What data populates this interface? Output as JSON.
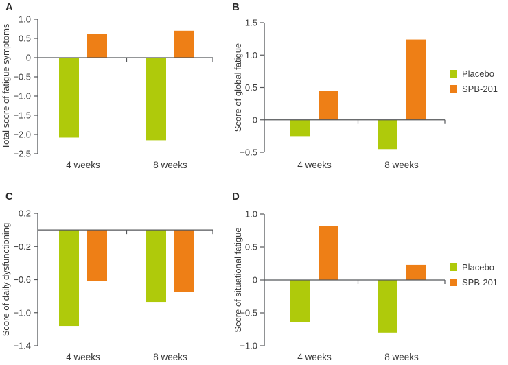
{
  "figure": {
    "background": "#ffffff",
    "axis_color": "#55575a",
    "text_color": "#3a3a3a",
    "legend": [
      {
        "label": "Placebo",
        "color": "#afca0b"
      },
      {
        "label": "SPB-201",
        "color": "#ee7f16"
      }
    ]
  },
  "chart_data": [
    {
      "id": "A",
      "panel_label": "A",
      "type": "bar",
      "categories": [
        "4 weeks",
        "8 weeks"
      ],
      "series": [
        {
          "name": "Placebo",
          "values": [
            -2.08,
            -2.15
          ]
        },
        {
          "name": "SPB-201",
          "values": [
            0.61,
            0.7
          ]
        }
      ],
      "title": "",
      "xlabel": "",
      "ylabel": "Total score of fatigue symptoms",
      "ylim": [
        -2.5,
        1.0
      ],
      "grid": false,
      "yticks": [
        {
          "v": 1.0,
          "label": "1.0"
        },
        {
          "v": 0.5,
          "label": "0.5"
        },
        {
          "v": 0,
          "label": "0"
        },
        {
          "v": -0.5,
          "label": "−0.5"
        },
        {
          "v": -1.0,
          "label": "−1.0"
        },
        {
          "v": -1.5,
          "label": "−1.5"
        },
        {
          "v": -2.0,
          "label": "−2.0"
        },
        {
          "v": -2.5,
          "label": "−2.5"
        }
      ]
    },
    {
      "id": "B",
      "panel_label": "B",
      "type": "bar",
      "categories": [
        "4 weeks",
        "8 weeks"
      ],
      "series": [
        {
          "name": "Placebo",
          "values": [
            -0.25,
            -0.45
          ]
        },
        {
          "name": "SPB-201",
          "values": [
            0.45,
            1.24
          ]
        }
      ],
      "title": "",
      "xlabel": "",
      "ylabel": "Score of global fatigue",
      "ylim": [
        -0.5,
        1.5
      ],
      "grid": false,
      "legend_position": "right",
      "yticks": [
        {
          "v": 1.5,
          "label": "1.5"
        },
        {
          "v": 1.0,
          "label": "1.0"
        },
        {
          "v": 0.5,
          "label": "0.5"
        },
        {
          "v": 0,
          "label": "0"
        },
        {
          "v": -0.5,
          "label": "−0.5"
        }
      ]
    },
    {
      "id": "C",
      "panel_label": "C",
      "type": "bar",
      "categories": [
        "4 weeks",
        "8 weeks"
      ],
      "series": [
        {
          "name": "Placebo",
          "values": [
            -1.16,
            -0.87
          ]
        },
        {
          "name": "SPB-201",
          "values": [
            -0.62,
            -0.75
          ]
        }
      ],
      "title": "",
      "xlabel": "",
      "ylabel": "Score of daily dysfunctioning",
      "ylim": [
        -1.4,
        0.2
      ],
      "grid": false,
      "yticks": [
        {
          "v": 0.2,
          "label": "0.2"
        },
        {
          "v": -0.2,
          "label": "−0.2"
        },
        {
          "v": -0.6,
          "label": "−0.6"
        },
        {
          "v": -1.0,
          "label": "−1.0"
        },
        {
          "v": -1.4,
          "label": "−1.4"
        }
      ]
    },
    {
      "id": "D",
      "panel_label": "D",
      "type": "bar",
      "categories": [
        "4 weeks",
        "8 weeks"
      ],
      "series": [
        {
          "name": "Placebo",
          "values": [
            -0.64,
            -0.8
          ]
        },
        {
          "name": "SPB-201",
          "values": [
            0.82,
            0.23
          ]
        }
      ],
      "title": "",
      "xlabel": "",
      "ylabel": "Score of situational fatigue",
      "ylim": [
        -1.0,
        1.0
      ],
      "grid": false,
      "legend_position": "right",
      "yticks": [
        {
          "v": 1.0,
          "label": "1.0"
        },
        {
          "v": 0.5,
          "label": "0.5"
        },
        {
          "v": 0,
          "label": "0"
        },
        {
          "v": -0.5,
          "label": "−0.5"
        },
        {
          "v": -1.0,
          "label": "−1.0"
        }
      ]
    }
  ]
}
